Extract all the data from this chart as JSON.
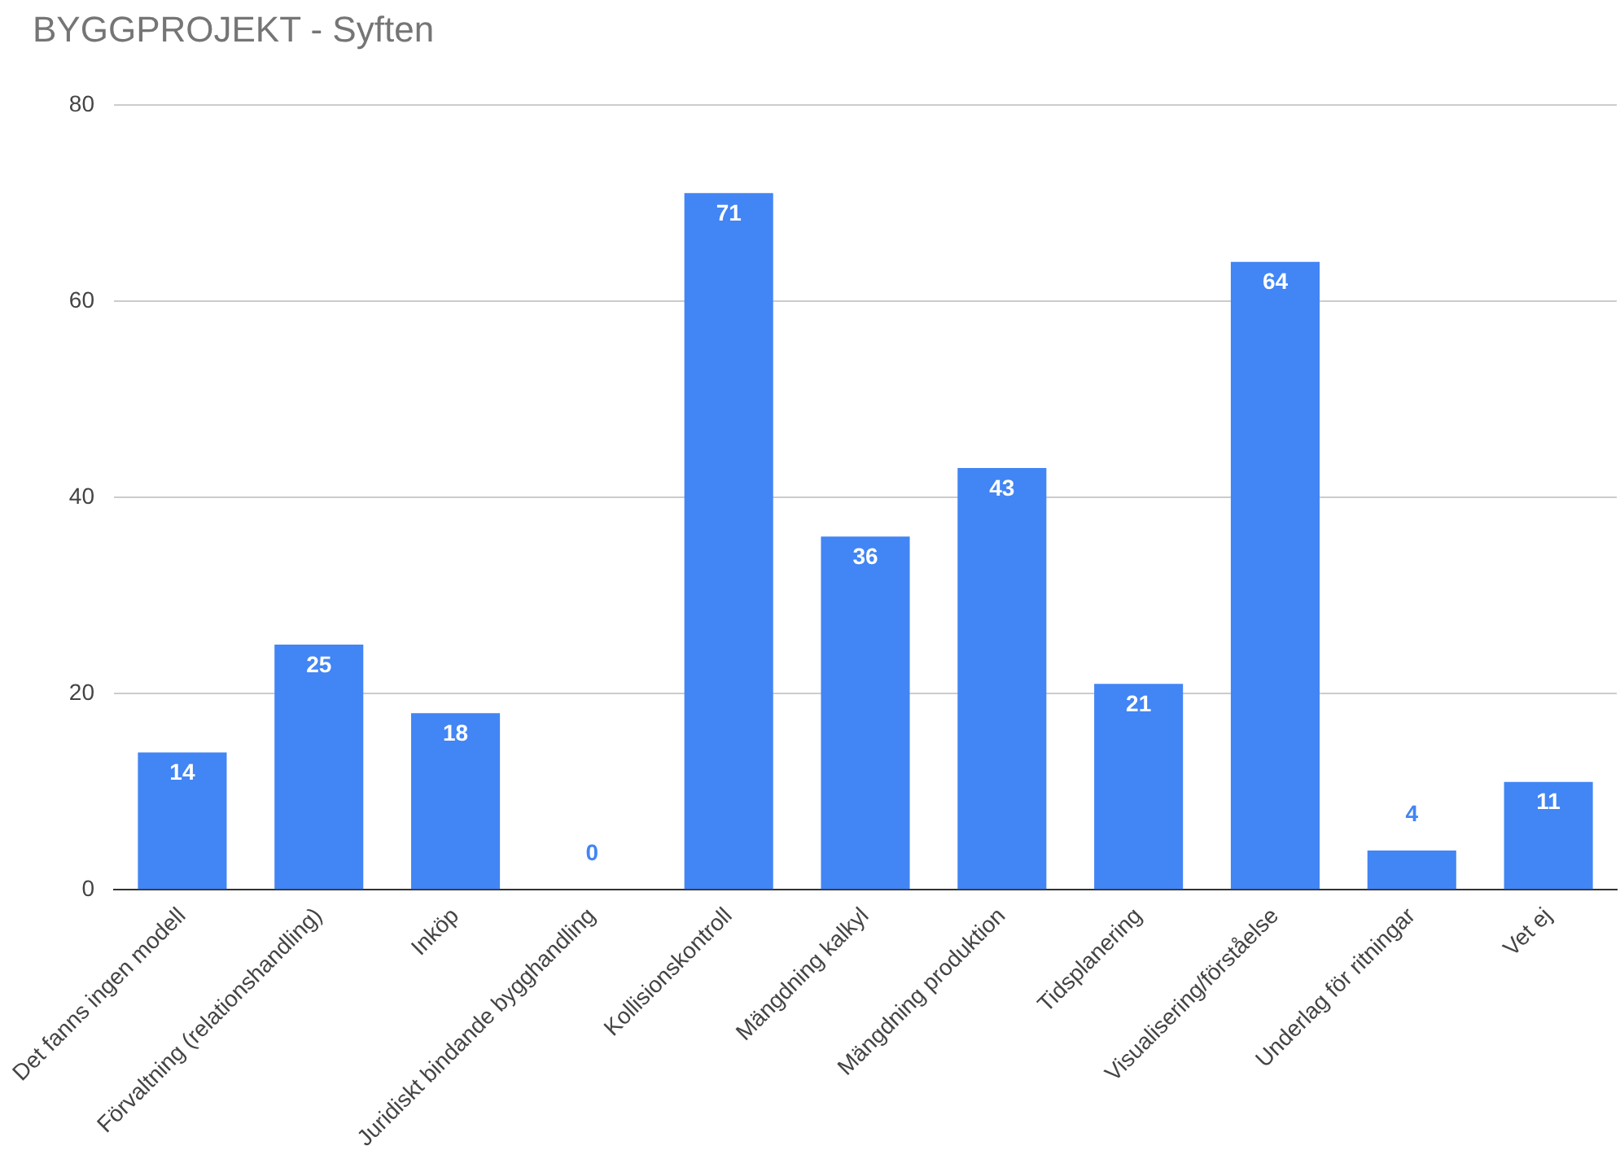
{
  "chart_data": {
    "type": "bar",
    "title": "BYGGPROJEKT - Syften",
    "categories": [
      "Det fanns ingen modell",
      "Förvaltning (relationshandling)",
      "Inköp",
      "Juridiskt bindande bygghandling",
      "Kollisionskontroll",
      "Mängdning kalkyl",
      "Mängdning produktion",
      "Tidsplanering",
      "Visualisering/förståelse",
      "Underlag för ritningar",
      "Vet ej"
    ],
    "values": [
      14,
      25,
      18,
      0,
      71,
      36,
      43,
      21,
      64,
      4,
      11
    ],
    "color": "#4285f4",
    "ylim": [
      0,
      80
    ],
    "yticks": [
      0,
      20,
      40,
      60,
      80
    ],
    "grid": "y",
    "legend": false,
    "data_labels": true
  }
}
